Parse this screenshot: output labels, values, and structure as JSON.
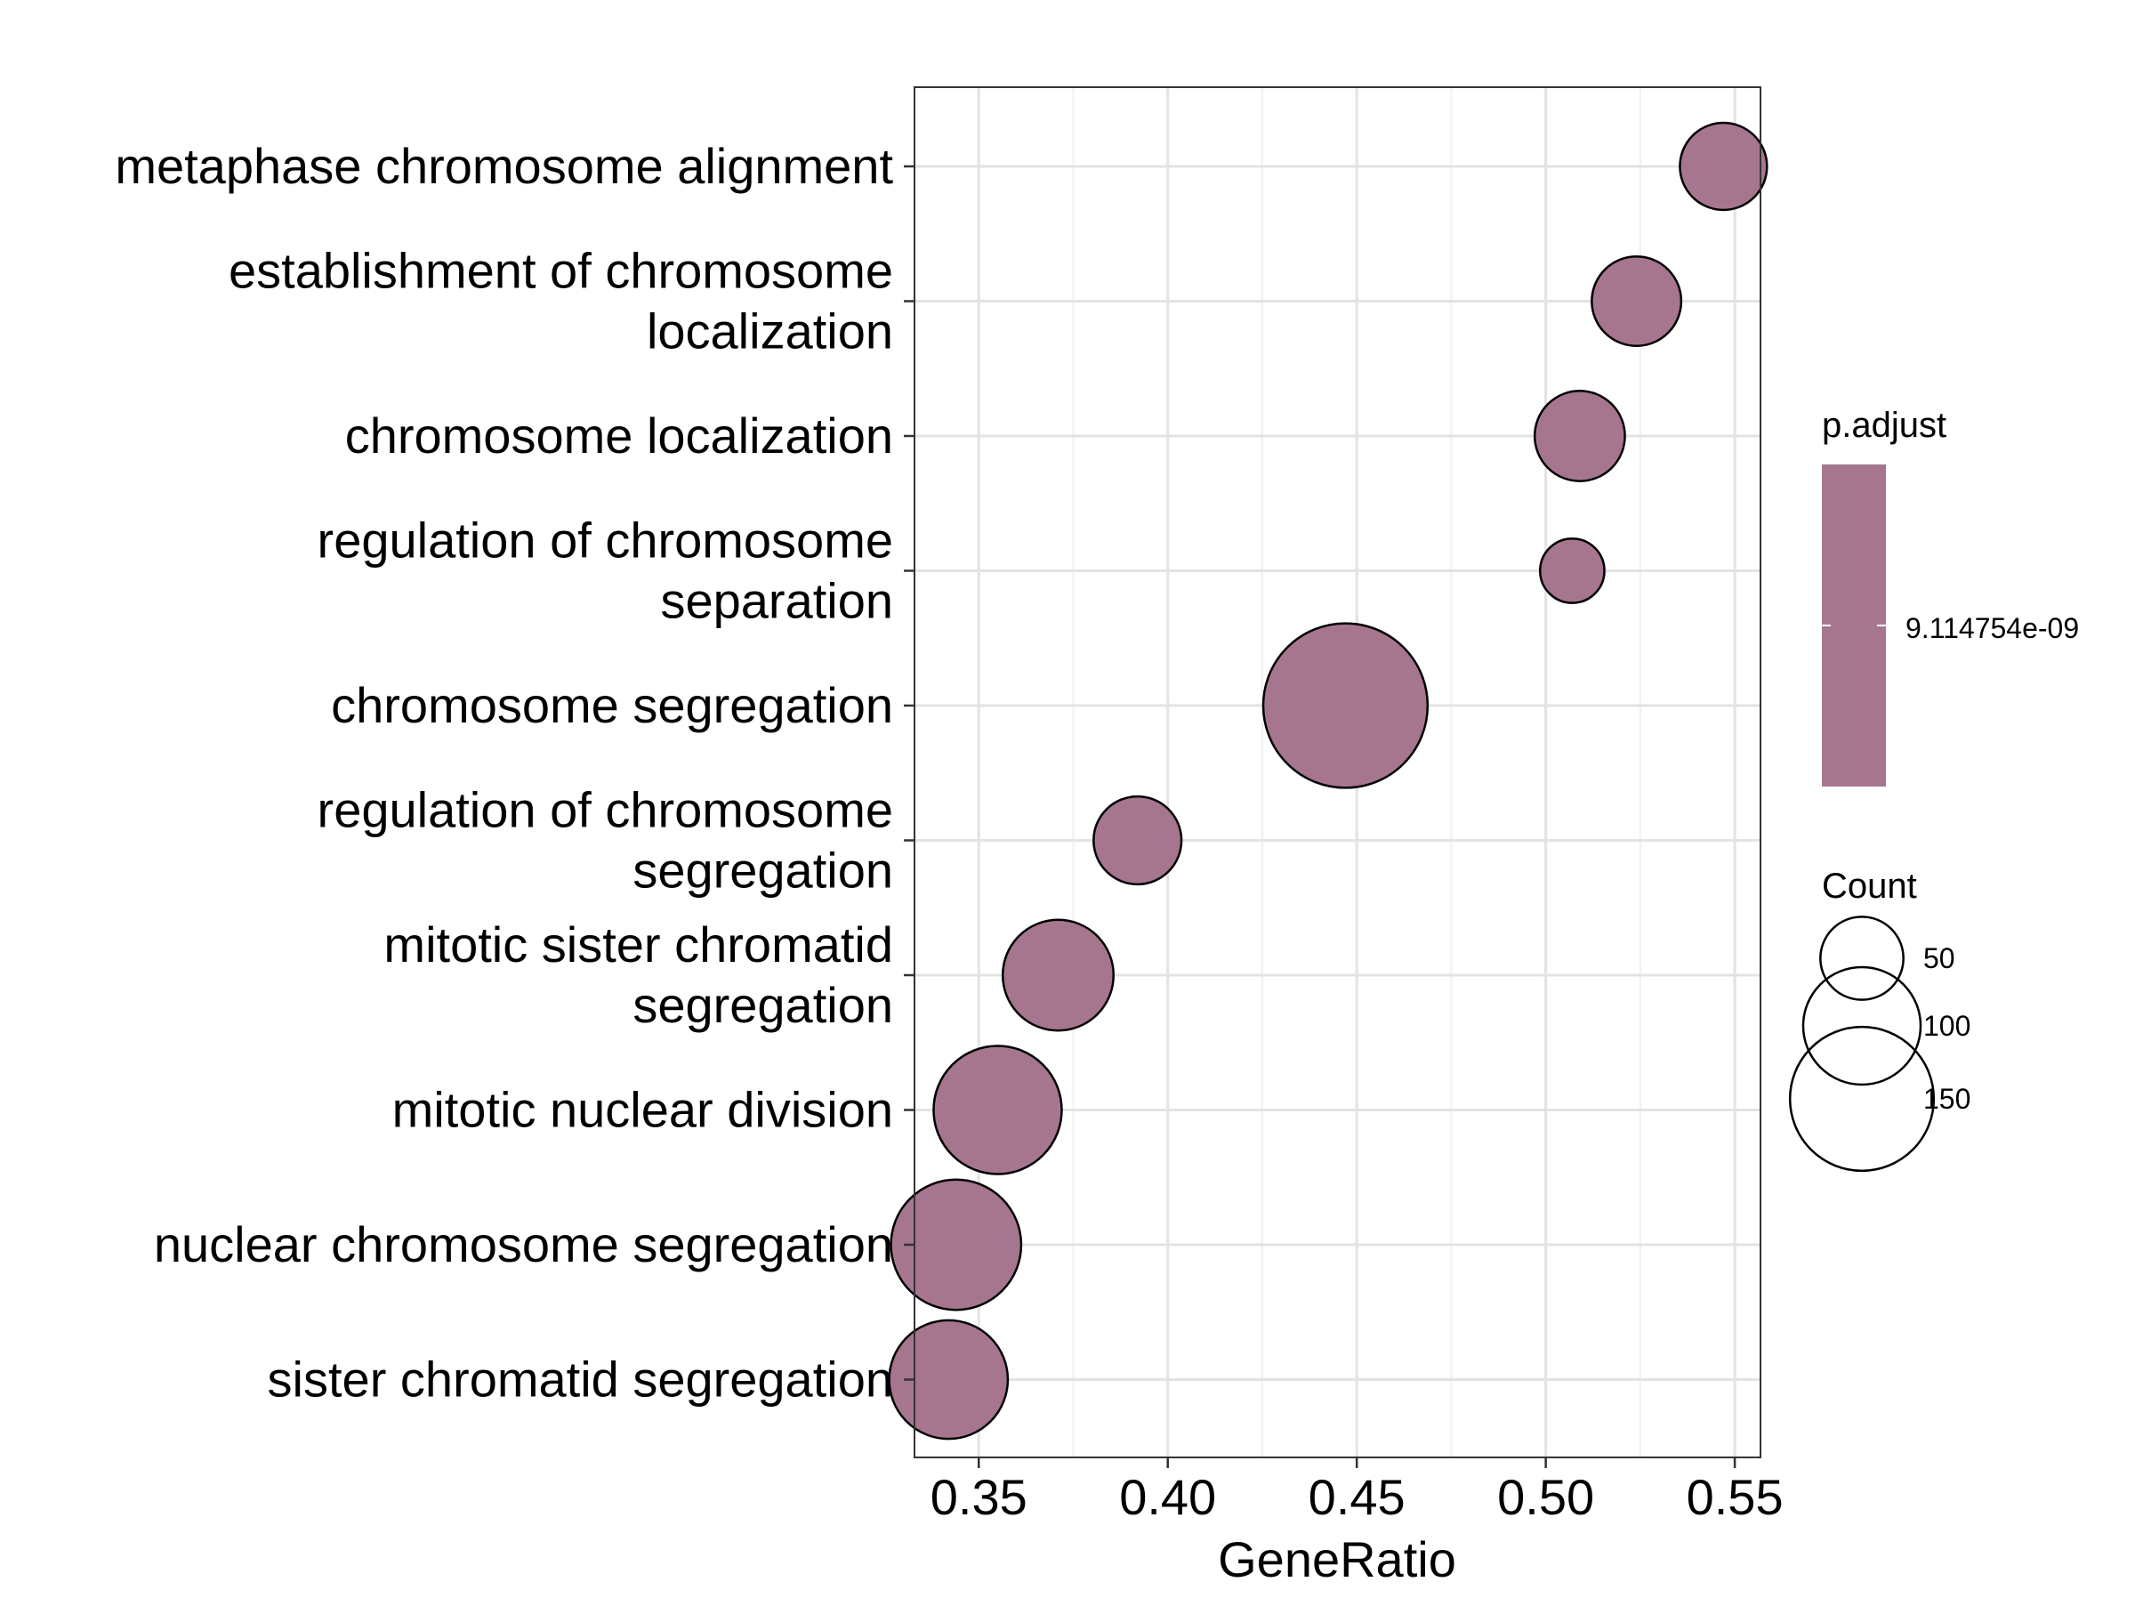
{
  "chart_data": {
    "type": "scatter",
    "title": "",
    "xlabel": "GeneRatio",
    "ylabel": "",
    "xlim": [
      0.333,
      0.5568
    ],
    "x_ticks": [
      0.35,
      0.4,
      0.45,
      0.5,
      0.55
    ],
    "x_tick_labels": [
      "0.35",
      "0.40",
      "0.45",
      "0.50",
      "0.55"
    ],
    "grid": true,
    "point_color": "#A6768F",
    "point_stroke": "#000000",
    "legend_position": "right",
    "categories": [
      [
        "metaphase chromosome alignment"
      ],
      [
        "establishment of chromosome",
        "localization"
      ],
      [
        "chromosome localization"
      ],
      [
        "regulation of chromosome",
        "separation"
      ],
      [
        "chromosome segregation"
      ],
      [
        "regulation of chromosome",
        "segregation"
      ],
      [
        "mitotic sister chromatid",
        "segregation"
      ],
      [
        "mitotic nuclear division"
      ],
      [
        "nuclear chromosome segregation"
      ],
      [
        "sister chromatid segregation"
      ]
    ],
    "points": [
      {
        "term": "metaphase chromosome alignment",
        "gene_ratio": 0.547,
        "count": 55
      },
      {
        "term": "establishment of chromosome localization",
        "gene_ratio": 0.524,
        "count": 58
      },
      {
        "term": "chromosome localization",
        "gene_ratio": 0.509,
        "count": 59
      },
      {
        "term": "regulation of chromosome separation",
        "gene_ratio": 0.507,
        "count": 30
      },
      {
        "term": "chromosome segregation",
        "gene_ratio": 0.447,
        "count": 196
      },
      {
        "term": "regulation of chromosome segregation",
        "gene_ratio": 0.392,
        "count": 56
      },
      {
        "term": "mitotic sister chromatid segregation",
        "gene_ratio": 0.371,
        "count": 89
      },
      {
        "term": "mitotic nuclear division",
        "gene_ratio": 0.355,
        "count": 119
      },
      {
        "term": "nuclear chromosome segregation",
        "gene_ratio": 0.344,
        "count": 123
      },
      {
        "term": "sister chromatid segregation",
        "gene_ratio": 0.342,
        "count": 102
      }
    ],
    "legend_padjust": {
      "title": "p.adjust",
      "label": "9.114754e-09",
      "color": "#A6768F"
    },
    "legend_count": {
      "title": "Count",
      "entries": [
        {
          "label": "50",
          "value": 50
        },
        {
          "label": "100",
          "value": 100
        },
        {
          "label": "150",
          "value": 150
        }
      ]
    }
  }
}
